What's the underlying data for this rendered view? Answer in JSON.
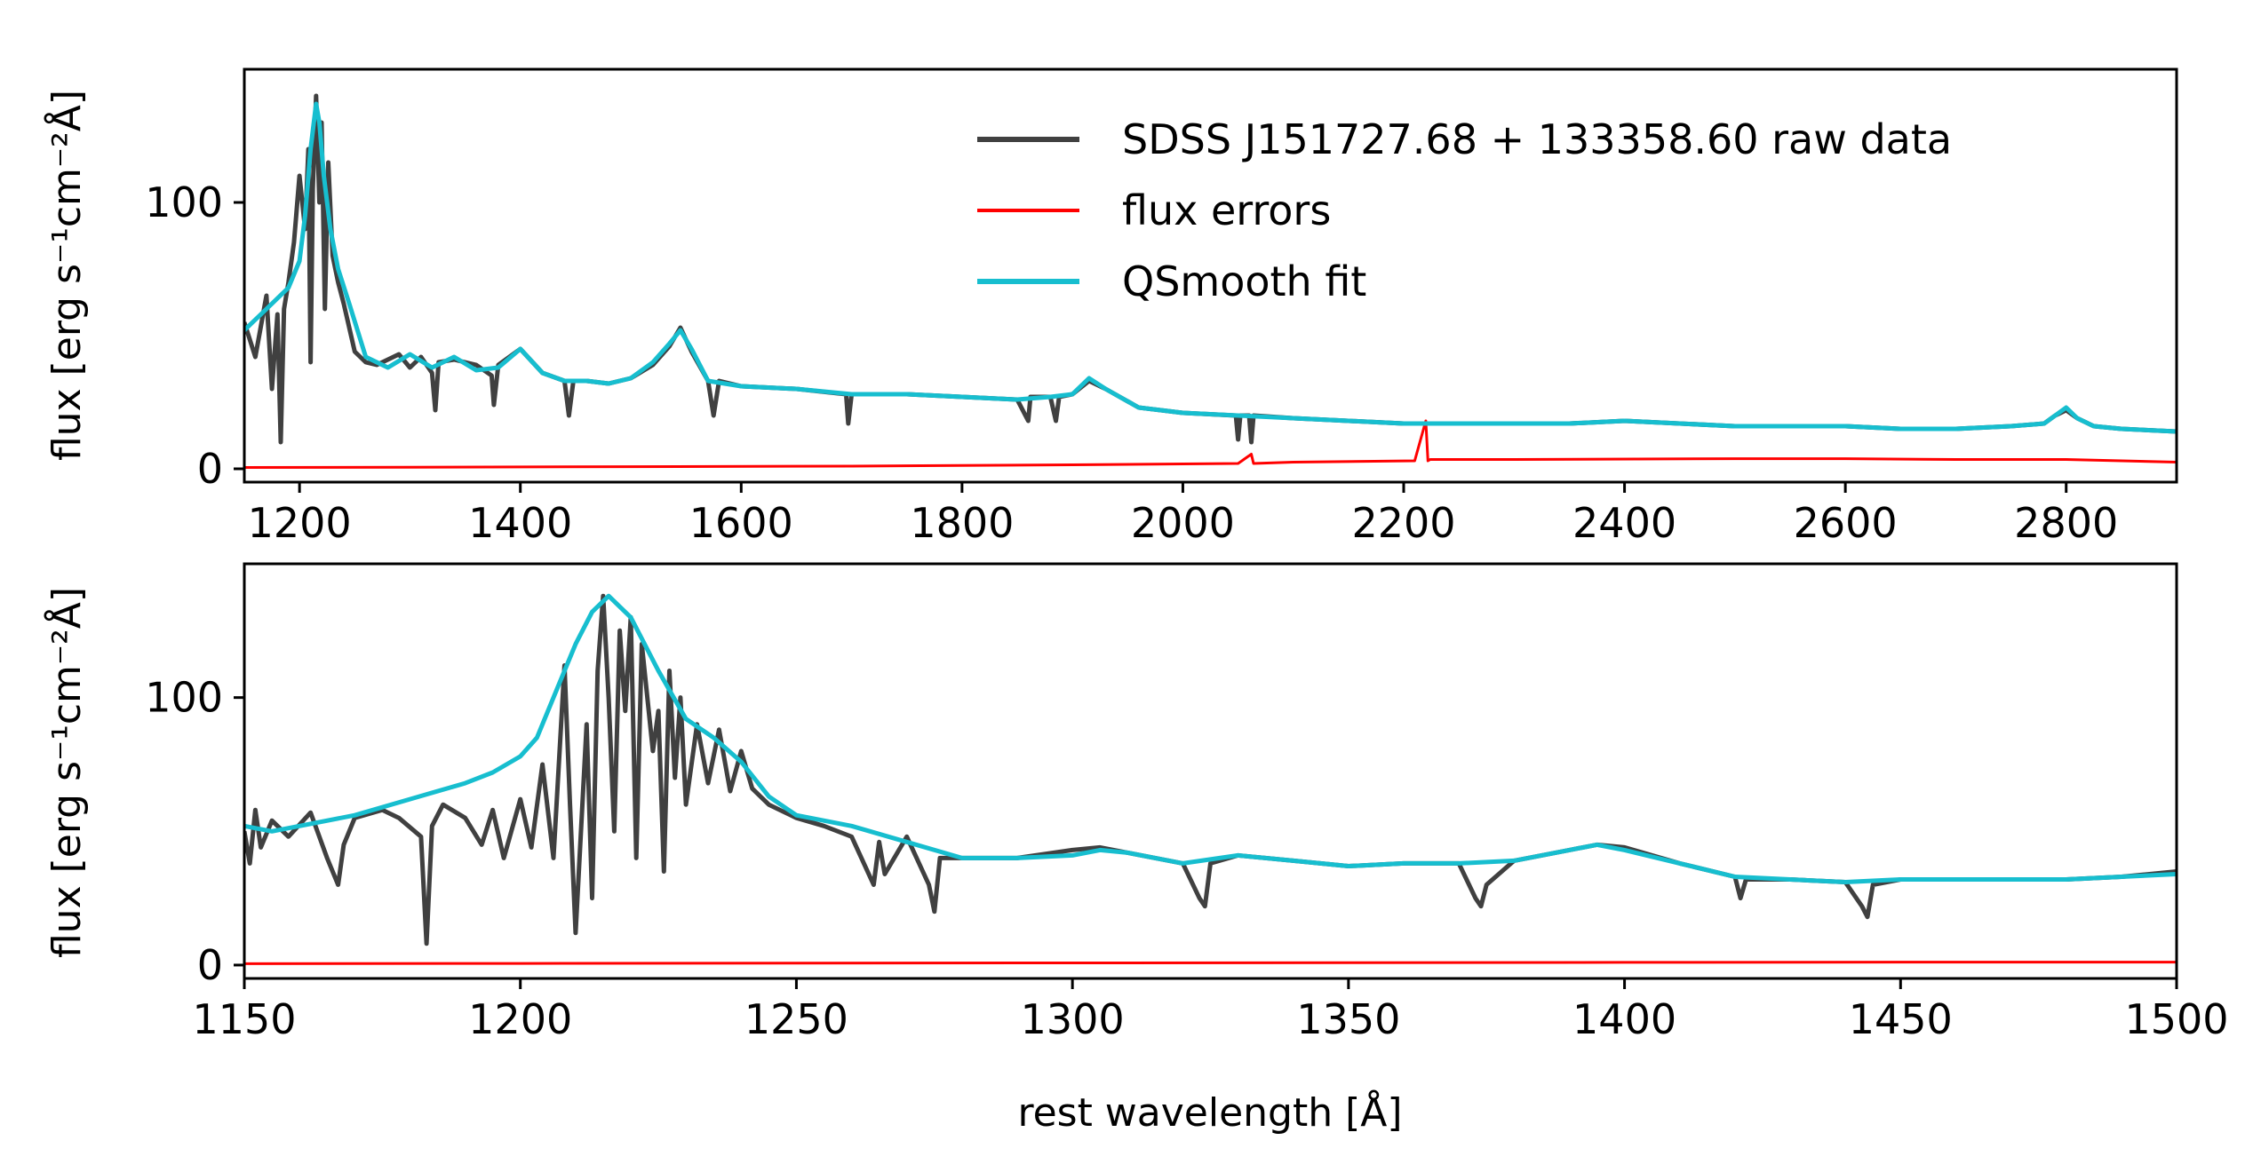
{
  "chart_data": [
    {
      "type": "line",
      "panel": "top",
      "xlim": [
        1150,
        2900
      ],
      "ylim": [
        -5,
        150
      ],
      "xticks": [
        1200,
        1400,
        1600,
        1800,
        2000,
        2200,
        2400,
        2600,
        2800
      ],
      "yticks": [
        0,
        100
      ],
      "ylabel": "flux [erg s⁻¹cm⁻²Å]",
      "xlabel": "",
      "grid": false,
      "legend": {
        "placement": "top-right",
        "entries": [
          {
            "label": "SDSS J151727.68 + 133358.60 raw data",
            "color": "#404040"
          },
          {
            "label": "flux errors",
            "color": "#ff0000"
          },
          {
            "label": "QSmooth fit",
            "color": "#17becf"
          }
        ]
      },
      "series": [
        {
          "name": "QSmooth fit",
          "color": "#17becf",
          "x": [
            1150,
            1170,
            1190,
            1200,
            1205,
            1210,
            1215,
            1218,
            1222,
            1228,
            1235,
            1245,
            1260,
            1280,
            1300,
            1320,
            1340,
            1360,
            1380,
            1400,
            1420,
            1440,
            1460,
            1480,
            1500,
            1520,
            1535,
            1545,
            1555,
            1570,
            1600,
            1650,
            1700,
            1750,
            1800,
            1850,
            1880,
            1900,
            1915,
            1930,
            1960,
            2000,
            2050,
            2100,
            2150,
            2200,
            2250,
            2300,
            2350,
            2400,
            2450,
            2500,
            2550,
            2600,
            2650,
            2700,
            2750,
            2780,
            2790,
            2800,
            2810,
            2825,
            2850,
            2900
          ],
          "y": [
            52,
            60,
            68,
            78,
            95,
            120,
            137,
            130,
            110,
            90,
            75,
            62,
            42,
            38,
            43,
            38,
            42,
            37,
            38,
            45,
            36,
            33,
            33,
            32,
            34,
            40,
            47,
            52,
            45,
            33,
            31,
            30,
            28,
            28,
            27,
            26,
            27,
            28,
            34,
            30,
            23,
            21,
            20,
            19,
            18,
            17,
            17,
            17,
            17,
            18,
            17,
            16,
            16,
            16,
            15,
            15,
            16,
            17,
            20,
            23,
            19,
            16,
            15,
            14
          ]
        },
        {
          "name": "SDSS J151727.68 + 133358.60 raw data",
          "color": "#404040",
          "x": [
            1150,
            1160,
            1170,
            1175,
            1180,
            1183,
            1186,
            1190,
            1195,
            1200,
            1205,
            1208,
            1210,
            1212,
            1215,
            1218,
            1220,
            1223,
            1226,
            1230,
            1235,
            1240,
            1250,
            1260,
            1270,
            1280,
            1290,
            1300,
            1310,
            1320,
            1323,
            1326,
            1340,
            1360,
            1374,
            1376,
            1380,
            1400,
            1420,
            1440,
            1444,
            1448,
            1460,
            1480,
            1500,
            1520,
            1535,
            1545,
            1555,
            1570,
            1575,
            1580,
            1600,
            1650,
            1695,
            1697,
            1700,
            1750,
            1800,
            1850,
            1860,
            1862,
            1870,
            1880,
            1885,
            1888,
            1900,
            1915,
            1930,
            1960,
            2000,
            2048,
            2050,
            2052,
            2060,
            2062,
            2064,
            2100,
            2150,
            2200,
            2250,
            2300,
            2350,
            2400,
            2450,
            2500,
            2550,
            2600,
            2650,
            2700,
            2750,
            2780,
            2790,
            2800,
            2810,
            2825,
            2850,
            2900
          ],
          "y": [
            55,
            42,
            65,
            30,
            58,
            10,
            60,
            70,
            85,
            110,
            90,
            120,
            40,
            105,
            140,
            100,
            130,
            60,
            115,
            80,
            70,
            62,
            44,
            40,
            39,
            41,
            43,
            38,
            42,
            36,
            22,
            40,
            41,
            39,
            35,
            24,
            39,
            45,
            36,
            33,
            20,
            33,
            33,
            32,
            34,
            39,
            46,
            53,
            44,
            33,
            20,
            33,
            31,
            30,
            28,
            17,
            28,
            28,
            27,
            26,
            18,
            27,
            27,
            27,
            18,
            27,
            28,
            33,
            30,
            23,
            21,
            20,
            11,
            20,
            20,
            10,
            20,
            19,
            18,
            17,
            17,
            17,
            17,
            18,
            17,
            16,
            16,
            16,
            15,
            15,
            16,
            17,
            20,
            22,
            19,
            16,
            15,
            14
          ]
        },
        {
          "name": "flux errors",
          "color": "#ff0000",
          "x": [
            1150,
            1300,
            1500,
            1700,
            1900,
            2050,
            2062,
            2064,
            2100,
            2210,
            2220,
            2222,
            2224,
            2300,
            2500,
            2600,
            2700,
            2800,
            2900
          ],
          "y": [
            0.5,
            0.6,
            0.8,
            1.0,
            1.5,
            2.0,
            5.5,
            2.0,
            2.5,
            3.0,
            18.0,
            3.0,
            3.5,
            3.5,
            3.8,
            3.8,
            3.5,
            3.5,
            2.5
          ]
        }
      ]
    },
    {
      "type": "line",
      "panel": "bottom",
      "xlim": [
        1150,
        1500
      ],
      "ylim": [
        -5,
        150
      ],
      "xticks": [
        1150,
        1200,
        1250,
        1300,
        1350,
        1400,
        1450,
        1500
      ],
      "yticks": [
        0,
        100
      ],
      "xlabel": "rest wavelength [Å]",
      "ylabel": "flux [erg s⁻¹cm⁻²Å]",
      "grid": false,
      "series": [
        {
          "name": "QSmooth fit",
          "color": "#17becf",
          "x": [
            1150,
            1155,
            1160,
            1170,
            1180,
            1190,
            1195,
            1200,
            1203,
            1207,
            1210,
            1213,
            1216,
            1220,
            1225,
            1230,
            1235,
            1240,
            1245,
            1250,
            1260,
            1270,
            1280,
            1290,
            1300,
            1305,
            1310,
            1320,
            1330,
            1340,
            1350,
            1360,
            1370,
            1380,
            1390,
            1395,
            1400,
            1410,
            1420,
            1430,
            1440,
            1450,
            1460,
            1470,
            1480,
            1490,
            1500
          ],
          "y": [
            52,
            50,
            52,
            56,
            62,
            68,
            72,
            78,
            85,
            105,
            120,
            132,
            138,
            130,
            110,
            92,
            85,
            76,
            63,
            56,
            52,
            46,
            40,
            40,
            41,
            43,
            42,
            38,
            41,
            39,
            37,
            38,
            38,
            39,
            43,
            45,
            43,
            38,
            33,
            32,
            31,
            32,
            32,
            32,
            32,
            33,
            34
          ]
        },
        {
          "name": "SDSS J151727.68 + 133358.60 raw data",
          "color": "#404040",
          "x": [
            1150,
            1151,
            1152,
            1153,
            1155,
            1158,
            1162,
            1165,
            1167,
            1168,
            1170,
            1175,
            1178,
            1182,
            1183,
            1184,
            1186,
            1190,
            1193,
            1195,
            1197,
            1200,
            1202,
            1204,
            1206,
            1208,
            1209,
            1210,
            1212,
            1213,
            1214,
            1215,
            1216,
            1217,
            1218,
            1219,
            1220,
            1221,
            1222,
            1224,
            1225,
            1226,
            1227,
            1228,
            1229,
            1230,
            1232,
            1234,
            1236,
            1238,
            1240,
            1242,
            1245,
            1250,
            1255,
            1260,
            1264,
            1265,
            1266,
            1270,
            1274,
            1275,
            1276,
            1280,
            1290,
            1300,
            1305,
            1310,
            1320,
            1323,
            1324,
            1325,
            1330,
            1340,
            1350,
            1360,
            1370,
            1373,
            1374,
            1375,
            1380,
            1390,
            1395,
            1400,
            1410,
            1420,
            1421,
            1422,
            1430,
            1440,
            1443,
            1444,
            1445,
            1450,
            1460,
            1470,
            1480,
            1490,
            1500
          ],
          "y": [
            50,
            38,
            58,
            44,
            54,
            48,
            57,
            40,
            30,
            45,
            55,
            58,
            55,
            48,
            8,
            52,
            60,
            55,
            45,
            58,
            40,
            62,
            44,
            75,
            40,
            112,
            60,
            12,
            90,
            25,
            110,
            138,
            100,
            50,
            125,
            95,
            130,
            40,
            120,
            80,
            95,
            35,
            110,
            70,
            100,
            60,
            90,
            68,
            88,
            65,
            80,
            66,
            60,
            55,
            52,
            48,
            30,
            46,
            34,
            48,
            30,
            20,
            40,
            40,
            40,
            43,
            44,
            42,
            38,
            25,
            22,
            38,
            41,
            39,
            37,
            38,
            38,
            25,
            22,
            30,
            39,
            43,
            45,
            44,
            38,
            33,
            25,
            32,
            32,
            31,
            22,
            18,
            30,
            32,
            32,
            32,
            32,
            33,
            35
          ]
        },
        {
          "name": "flux errors",
          "color": "#ff0000",
          "x": [
            1150,
            1200,
            1250,
            1300,
            1350,
            1400,
            1450,
            1500
          ],
          "y": [
            0.5,
            0.6,
            0.7,
            0.8,
            0.9,
            1.0,
            1.1,
            1.1
          ]
        }
      ]
    }
  ]
}
